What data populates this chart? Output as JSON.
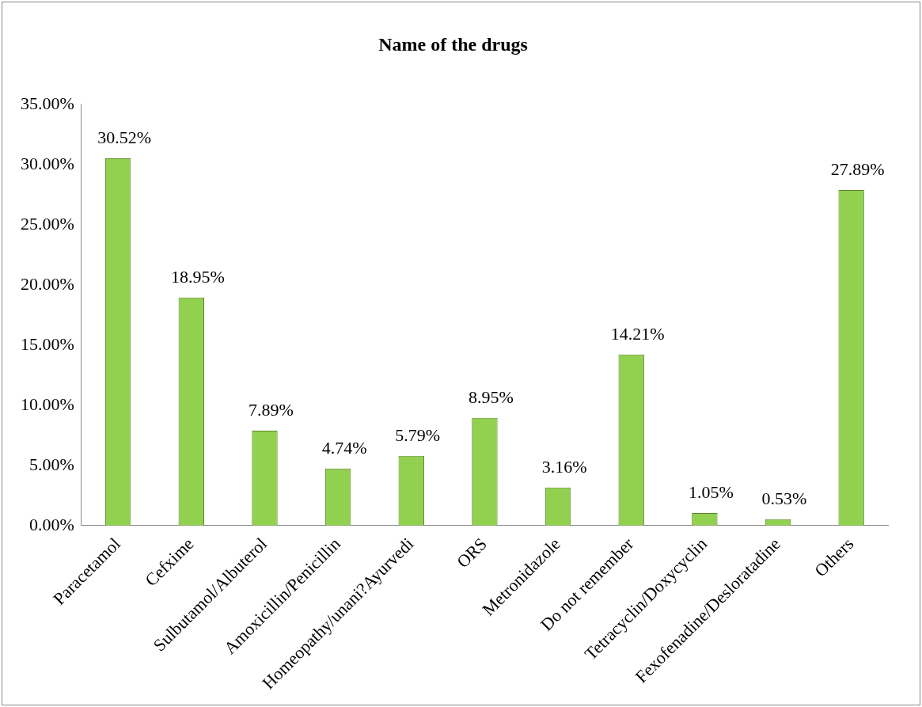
{
  "chart_data": {
    "type": "bar",
    "title": "Name of the drugs",
    "categories": [
      "Paracetamol",
      "Cefxime",
      "Sulbutamol/Albuterol",
      "Amoxicillin/Penicillin",
      "Homeopathy/unani?Ayurvedi",
      "ORS",
      "Metronidazole",
      "Do not remember",
      "Tetracyclin/Doxycyclin",
      "Fexofenadine/Desloratadine",
      "Others"
    ],
    "values": [
      30.52,
      18.95,
      7.89,
      4.74,
      5.79,
      8.95,
      3.16,
      14.21,
      1.05,
      0.53,
      27.89
    ],
    "value_labels": [
      "30.52%",
      "18.95%",
      "7.89%",
      "4.74%",
      "5.79%",
      "8.95%",
      "3.16%",
      "14.21%",
      "1.05%",
      "0.53%",
      "27.89%"
    ],
    "color": "#92d050",
    "ylim": [
      0,
      35
    ],
    "yticks": [
      {
        "value": 0,
        "label": "0.00%"
      },
      {
        "value": 5,
        "label": "5.00%"
      },
      {
        "value": 10,
        "label": "10.00%"
      },
      {
        "value": 15,
        "label": "15.00%"
      },
      {
        "value": 20,
        "label": "20.00%"
      },
      {
        "value": 25,
        "label": "25.00%"
      },
      {
        "value": 30,
        "label": "30.00%"
      },
      {
        "value": 35,
        "label": "35.00%"
      }
    ],
    "grid": false,
    "legend": false
  }
}
